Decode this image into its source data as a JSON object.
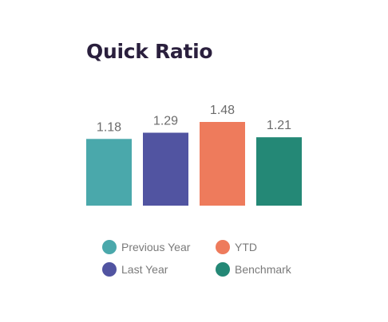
{
  "chart_data": {
    "type": "bar",
    "title": "Quick Ratio",
    "categories": [
      "Previous Year",
      "Last Year",
      "YTD",
      "Benchmark"
    ],
    "values": [
      1.18,
      1.29,
      1.48,
      1.21
    ],
    "data_labels": [
      "1.18",
      "1.29",
      "1.48",
      "1.21"
    ],
    "colors": [
      "#4aa8ab",
      "#5154a1",
      "#ee7b5c",
      "#248876"
    ],
    "xlabel": "",
    "ylabel": "",
    "ylim": [
      0,
      1.48
    ],
    "grid": false,
    "legend_position": "bottom"
  }
}
